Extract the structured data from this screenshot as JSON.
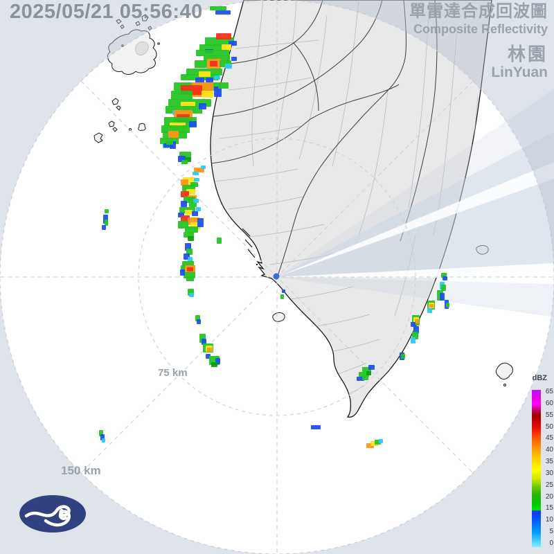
{
  "header": {
    "timestamp": "2025/05/21 05:56:40",
    "title_zh": "單雷達合成回波圖",
    "title_en": "Composite Reflectivity",
    "station_zh": "林園",
    "station_en": "LinYuan"
  },
  "rings": {
    "inner_label": "75 km",
    "outer_label": "150 km"
  },
  "legend": {
    "unit": "dBZ",
    "ticks": [
      65,
      60,
      55,
      50,
      45,
      40,
      35,
      30,
      25,
      20,
      15,
      10,
      5,
      0
    ],
    "gradient": [
      [
        0,
        "#b414ff"
      ],
      [
        5,
        "#e600e6"
      ],
      [
        9,
        "#ff00ff"
      ],
      [
        13,
        "#c80064"
      ],
      [
        16,
        "#a00000"
      ],
      [
        20,
        "#c80000"
      ],
      [
        25,
        "#f01400"
      ],
      [
        30,
        "#ff5000"
      ],
      [
        36,
        "#ff8c00"
      ],
      [
        43,
        "#ffc800"
      ],
      [
        51,
        "#ffff00"
      ],
      [
        57,
        "#c8e600"
      ],
      [
        62,
        "#64c800"
      ],
      [
        67,
        "#28b400"
      ],
      [
        72,
        "#00c800"
      ],
      [
        76.5,
        "#00e600"
      ],
      [
        77,
        "#1432f0"
      ],
      [
        84,
        "#0064ff"
      ],
      [
        91,
        "#00a0ff"
      ],
      [
        100,
        "#82f0ff"
      ]
    ]
  },
  "palette": {
    "g": "#25c424",
    "dg": "#109e10",
    "y": "#ffe51c",
    "o": "#ff9517",
    "r": "#f4311c",
    "b": "#2050f0",
    "c": "#30c8f8"
  },
  "map_colors": {
    "land": "#e9e9e9",
    "ocean": "#ffffff",
    "out_of_range_overlay": "rgba(178,191,208,0.42)",
    "blockage": "rgba(199,209,222,0.55)",
    "radar_marker": "#3b6ae0"
  },
  "echoes": [
    [
      303,
      9,
      24,
      6,
      "g"
    ],
    [
      311,
      15,
      22,
      6,
      "b"
    ],
    [
      296,
      54,
      42,
      12,
      "g"
    ],
    [
      312,
      48,
      22,
      9,
      "r"
    ],
    [
      330,
      59,
      12,
      7,
      "b"
    ],
    [
      288,
      64,
      38,
      9,
      "g"
    ],
    [
      320,
      64,
      14,
      8,
      "y"
    ],
    [
      296,
      71,
      12,
      6,
      "b"
    ],
    [
      283,
      72,
      48,
      9,
      "g"
    ],
    [
      294,
      80,
      38,
      8,
      "g"
    ],
    [
      299,
      85,
      20,
      15,
      "o"
    ],
    [
      303,
      88,
      11,
      8,
      "r"
    ],
    [
      281,
      87,
      18,
      11,
      "g"
    ],
    [
      317,
      87,
      17,
      10,
      "g"
    ],
    [
      325,
      92,
      10,
      7,
      "c"
    ],
    [
      334,
      82,
      8,
      6,
      "b"
    ],
    [
      269,
      99,
      52,
      10,
      "g"
    ],
    [
      261,
      107,
      55,
      9,
      "g"
    ],
    [
      287,
      103,
      17,
      8,
      "y"
    ],
    [
      282,
      112,
      13,
      8,
      "b"
    ],
    [
      297,
      112,
      11,
      7,
      "b"
    ],
    [
      309,
      109,
      9,
      6,
      "c"
    ],
    [
      251,
      119,
      66,
      12,
      "g"
    ],
    [
      277,
      119,
      31,
      21,
      "o"
    ],
    [
      261,
      123,
      31,
      14,
      "r"
    ],
    [
      247,
      131,
      31,
      13,
      "g"
    ],
    [
      291,
      131,
      17,
      10,
      "y"
    ],
    [
      309,
      125,
      11,
      15,
      "b"
    ],
    [
      315,
      119,
      15,
      9,
      "g"
    ],
    [
      243,
      143,
      62,
      11,
      "g"
    ],
    [
      261,
      147,
      21,
      9,
      "y"
    ],
    [
      239,
      153,
      53,
      11,
      "g"
    ],
    [
      287,
      149,
      11,
      9,
      "b"
    ],
    [
      249,
      159,
      9,
      7,
      "c"
    ],
    [
      251,
      159,
      27,
      17,
      "o"
    ],
    [
      255,
      165,
      19,
      13,
      "r"
    ],
    [
      237,
      169,
      47,
      13,
      "g"
    ],
    [
      245,
      177,
      23,
      9,
      "y"
    ],
    [
      233,
      181,
      41,
      11,
      "g"
    ],
    [
      273,
      175,
      11,
      9,
      "b"
    ],
    [
      235,
      189,
      35,
      11,
      "g"
    ],
    [
      243,
      189,
      15,
      11,
      "o"
    ],
    [
      231,
      199,
      27,
      9,
      "g"
    ],
    [
      245,
      204,
      9,
      11,
      "b"
    ],
    [
      235,
      207,
      9,
      7,
      "c"
    ],
    [
      236,
      207,
      14,
      6,
      "b"
    ],
    [
      240,
      204,
      10,
      5,
      "g"
    ],
    [
      259,
      219,
      17,
      11,
      "g"
    ],
    [
      257,
      225,
      11,
      9,
      "b"
    ],
    [
      267,
      227,
      9,
      7,
      "dg"
    ],
    [
      262,
      231,
      9,
      6,
      "g"
    ],
    [
      280,
      242,
      15,
      7,
      "o"
    ],
    [
      278,
      248,
      9,
      5,
      "c"
    ],
    [
      290,
      239,
      7,
      5,
      "c"
    ],
    [
      264,
      256,
      18,
      11,
      "y"
    ],
    [
      261,
      259,
      11,
      9,
      "o"
    ],
    [
      275,
      263,
      11,
      7,
      "g"
    ],
    [
      280,
      257,
      8,
      5,
      "c"
    ],
    [
      263,
      267,
      19,
      9,
      "g"
    ],
    [
      269,
      273,
      13,
      8,
      "y"
    ],
    [
      261,
      276,
      12,
      9,
      "r"
    ],
    [
      271,
      282,
      13,
      8,
      "o"
    ],
    [
      265,
      284,
      17,
      9,
      "g"
    ],
    [
      261,
      290,
      9,
      9,
      "b"
    ],
    [
      273,
      292,
      11,
      7,
      "g"
    ],
    [
      279,
      287,
      8,
      6,
      "c"
    ],
    [
      259,
      299,
      23,
      9,
      "g"
    ],
    [
      267,
      303,
      11,
      7,
      "y"
    ],
    [
      257,
      307,
      9,
      7,
      "b"
    ],
    [
      277,
      305,
      9,
      7,
      "b"
    ],
    [
      283,
      299,
      7,
      6,
      "c"
    ],
    [
      261,
      311,
      13,
      10,
      "r"
    ],
    [
      271,
      314,
      17,
      11,
      "o"
    ],
    [
      275,
      321,
      15,
      10,
      "y"
    ],
    [
      257,
      319,
      15,
      11,
      "g"
    ],
    [
      267,
      327,
      19,
      9,
      "g"
    ],
    [
      285,
      315,
      9,
      13,
      "b"
    ],
    [
      265,
      335,
      15,
      8,
      "g"
    ],
    [
      271,
      341,
      9,
      7,
      "dg"
    ],
    [
      313,
      343,
      7,
      9,
      "g"
    ],
    [
      267,
      351,
      9,
      11,
      "b"
    ],
    [
      269,
      359,
      9,
      9,
      "g"
    ],
    [
      265,
      366,
      9,
      9,
      "b"
    ],
    [
      271,
      371,
      7,
      7,
      "c"
    ],
    [
      263,
      377,
      17,
      9,
      "g"
    ],
    [
      261,
      383,
      21,
      11,
      "g"
    ],
    [
      267,
      383,
      15,
      10,
      "o"
    ],
    [
      270,
      386,
      9,
      6,
      "r"
    ],
    [
      265,
      393,
      17,
      9,
      "g"
    ],
    [
      269,
      399,
      11,
      7,
      "g"
    ],
    [
      260,
      389,
      7,
      9,
      "b"
    ],
    [
      271,
      417,
      9,
      10,
      "g"
    ],
    [
      273,
      423,
      7,
      6,
      "c"
    ],
    [
      151,
      302,
      6,
      6,
      "g"
    ],
    [
      149,
      310,
      7,
      13,
      "b"
    ],
    [
      151,
      317,
      5,
      9,
      "g"
    ],
    [
      147,
      325,
      6,
      7,
      "b"
    ],
    [
      282,
      455,
      7,
      9,
      "g"
    ],
    [
      284,
      461,
      6,
      7,
      "b"
    ],
    [
      288,
      482,
      9,
      13,
      "g"
    ],
    [
      291,
      489,
      7,
      9,
      "b"
    ],
    [
      293,
      496,
      15,
      13,
      "g"
    ],
    [
      297,
      499,
      10,
      9,
      "y"
    ],
    [
      299,
      502,
      7,
      6,
      "o"
    ],
    [
      297,
      511,
      7,
      7,
      "b"
    ],
    [
      302,
      514,
      15,
      13,
      "g"
    ],
    [
      311,
      517,
      7,
      9,
      "b"
    ],
    [
      305,
      523,
      9,
      7,
      "dg"
    ],
    [
      523,
      530,
      13,
      7,
      "g"
    ],
    [
      532,
      527,
      9,
      7,
      "b"
    ],
    [
      518,
      537,
      15,
      7,
      "g"
    ],
    [
      529,
      536,
      7,
      6,
      "dg"
    ],
    [
      515,
      544,
      11,
      6,
      "b"
    ],
    [
      523,
      543,
      9,
      6,
      "g"
    ],
    [
      637,
      394,
      8,
      7,
      "g"
    ],
    [
      639,
      399,
      7,
      6,
      "b"
    ],
    [
      635,
      407,
      7,
      11,
      "c"
    ],
    [
      637,
      411,
      7,
      9,
      "g"
    ],
    [
      631,
      419,
      9,
      15,
      "g"
    ],
    [
      635,
      423,
      7,
      11,
      "b"
    ],
    [
      617,
      434,
      11,
      13,
      "g"
    ],
    [
      619,
      437,
      8,
      8,
      "y"
    ],
    [
      620,
      439,
      6,
      5,
      "o"
    ],
    [
      617,
      445,
      7,
      7,
      "c"
    ],
    [
      642,
      433,
      6,
      13,
      "b"
    ],
    [
      644,
      437,
      5,
      7,
      "g"
    ],
    [
      595,
      455,
      11,
      15,
      "g"
    ],
    [
      597,
      458,
      8,
      9,
      "y"
    ],
    [
      599,
      461,
      6,
      6,
      "o"
    ],
    [
      593,
      465,
      7,
      7,
      "b"
    ],
    [
      597,
      471,
      8,
      11,
      "b"
    ],
    [
      595,
      479,
      9,
      11,
      "g"
    ],
    [
      593,
      487,
      7,
      9,
      "c"
    ],
    [
      577,
      509,
      7,
      11,
      "b"
    ],
    [
      579,
      511,
      6,
      7,
      "g"
    ],
    [
      449,
      614,
      14,
      6,
      "b"
    ],
    [
      529,
      640,
      11,
      7,
      "o"
    ],
    [
      535,
      637,
      11,
      7,
      "y"
    ],
    [
      541,
      635,
      9,
      7,
      "g"
    ],
    [
      547,
      634,
      6,
      6,
      "c"
    ],
    [
      143,
      621,
      6,
      9,
      "g"
    ],
    [
      145,
      627,
      6,
      9,
      "b"
    ],
    [
      147,
      633,
      5,
      6,
      "c"
    ],
    [
      407,
      418,
      5,
      5,
      "b"
    ],
    [
      405,
      425,
      5,
      7,
      "g"
    ]
  ]
}
